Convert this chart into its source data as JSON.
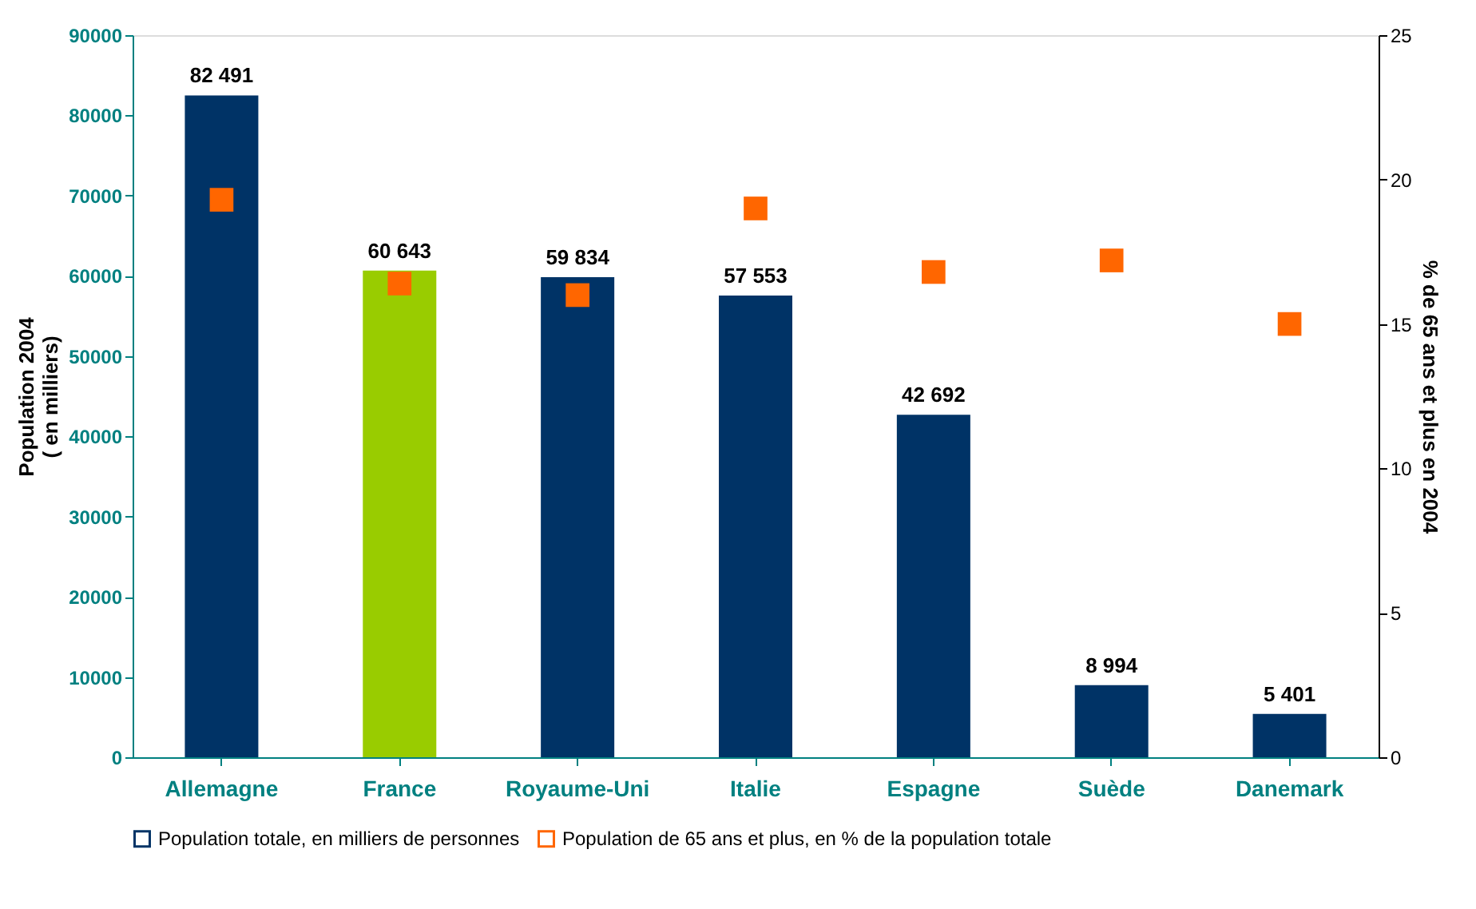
{
  "chart_data": {
    "type": "bar",
    "categories": [
      "Allemagne",
      "France",
      "Royaume-Uni",
      "Italie",
      "Espagne",
      "Suède",
      "Danemark"
    ],
    "ylabel": "Population 2004\n( en milliers)",
    "y2label": "% de 65 ans et plus en 2004",
    "ylim": [
      0,
      90000
    ],
    "yticks": [
      0,
      10000,
      20000,
      30000,
      40000,
      50000,
      60000,
      70000,
      80000,
      90000
    ],
    "y2lim": [
      0,
      25
    ],
    "y2ticks": [
      0,
      5,
      10,
      15,
      20,
      25
    ],
    "grid": false,
    "legend": "bottom",
    "series": [
      {
        "name": "Population totale, en milliers de personnes",
        "color": "#003366",
        "colors": [
          "#003366",
          "#99cc00",
          "#003366",
          "#003366",
          "#003366",
          "#003366",
          "#003366"
        ],
        "values": [
          82491,
          60643,
          59834,
          57553,
          42692,
          8994,
          5401
        ],
        "value_labels": [
          "82 491",
          "60 643",
          "59 834",
          "57 553",
          "42 692",
          "8 994",
          "5 401"
        ]
      },
      {
        "name": "Population de 65 ans et plus, en % de la population totale",
        "type": "scatter",
        "axis": "y2",
        "marker": "square",
        "color": "#ff6600",
        "values": [
          19.3,
          16.4,
          16.0,
          19.0,
          16.8,
          17.2,
          15.0
        ]
      }
    ]
  }
}
